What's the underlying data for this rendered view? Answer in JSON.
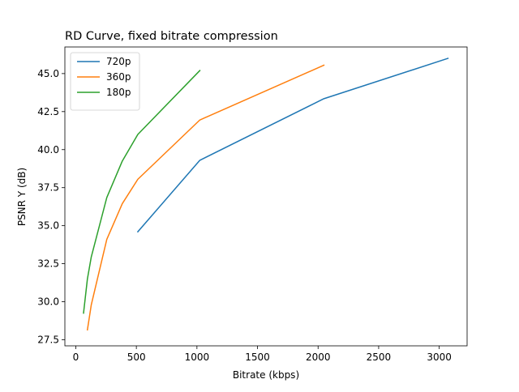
{
  "chart_data": {
    "type": "line",
    "title": "RD Curve, fixed bitrate compression",
    "xlabel": "Bitrate (kbps)",
    "ylabel": "PSNR Y (dB)",
    "xlim": [
      -90,
      3230
    ],
    "ylim": [
      27.1,
      46.75
    ],
    "xticks": [
      0,
      500,
      1000,
      1500,
      2000,
      2500,
      3000
    ],
    "xtick_labels": [
      "0",
      "500",
      "1000",
      "1500",
      "2000",
      "2500",
      "3000"
    ],
    "yticks": [
      27.5,
      30.0,
      32.5,
      35.0,
      37.5,
      40.0,
      42.5,
      45.0
    ],
    "ytick_labels": [
      "27.5",
      "30.0",
      "32.5",
      "35.0",
      "37.5",
      "40.0",
      "42.5",
      "45.0"
    ],
    "grid": false,
    "legend_position": "top-left",
    "series": [
      {
        "name": "720p",
        "color": "#1f77b4",
        "x": [
          512,
          1024,
          2048,
          3072
        ],
        "y": [
          34.6,
          39.3,
          43.35,
          46.0
        ]
      },
      {
        "name": "360p",
        "color": "#ff7f0e",
        "x": [
          96,
          128,
          256,
          384,
          512,
          1024,
          2048
        ],
        "y": [
          28.15,
          29.8,
          34.1,
          36.45,
          38.05,
          41.95,
          45.55
        ]
      },
      {
        "name": "180p",
        "color": "#2ca02c",
        "x": [
          64,
          96,
          128,
          256,
          384,
          512,
          1024
        ],
        "y": [
          29.25,
          31.5,
          32.95,
          36.85,
          39.25,
          41.0,
          45.2
        ]
      }
    ]
  }
}
